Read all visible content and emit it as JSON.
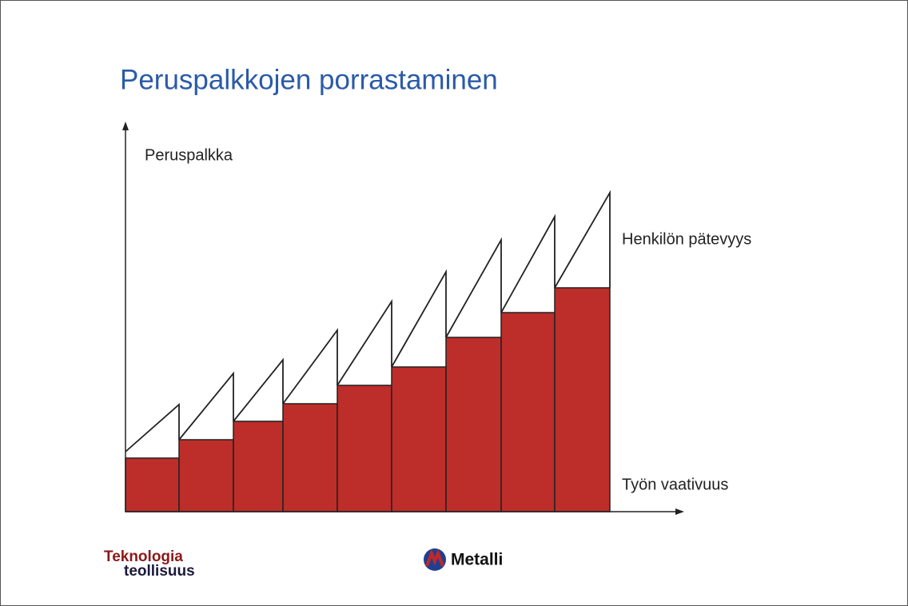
{
  "title": "Peruspalkkojen porrastaminen",
  "diagram": {
    "y_label": "Peruspalkka",
    "curve_label": "Henkilön pätevyys",
    "x_label": "Työn vaativuus"
  },
  "footer": {
    "logo_left": {
      "line1": "Teknologia",
      "line2": "teollisuus"
    },
    "logo_right": "Metalli"
  }
}
